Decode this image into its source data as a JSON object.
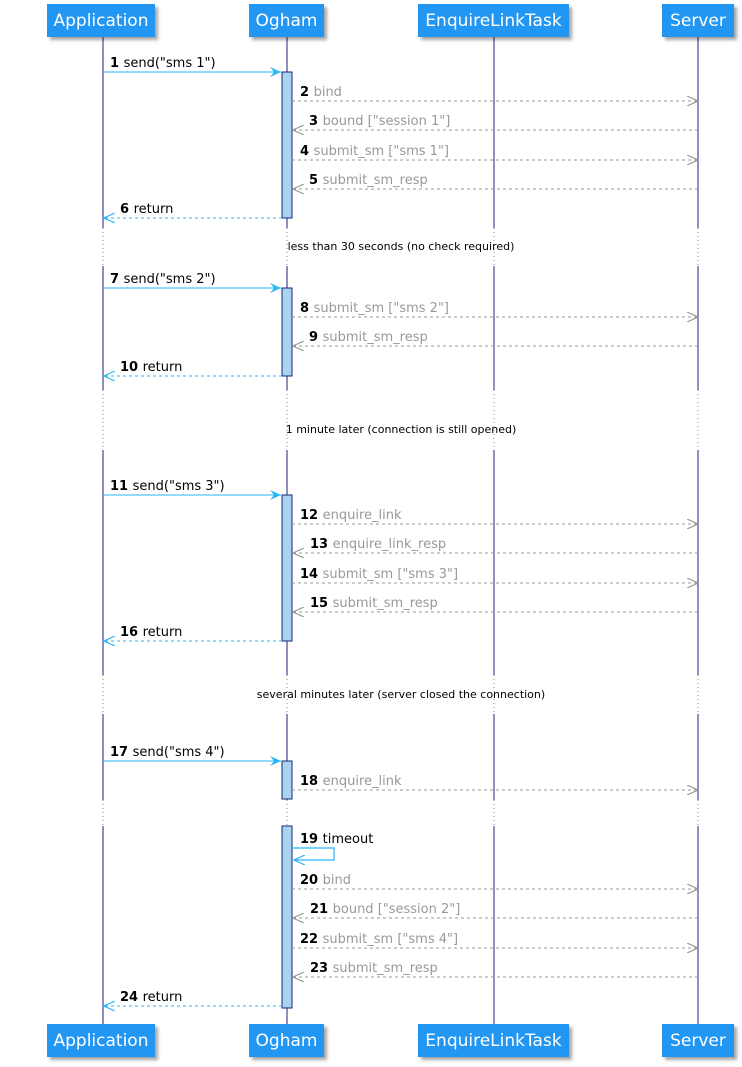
{
  "colors": {
    "actor_fill": "#2196f3",
    "lifeline": "#1a237e",
    "activation": "#a8d4ee",
    "sync_arrow": "#29b6f6",
    "async_arrow": "#999999"
  },
  "participants": [
    {
      "id": "app",
      "name": "Application"
    },
    {
      "id": "ogham",
      "name": "Ogham"
    },
    {
      "id": "task",
      "name": "EnquireLinkTask"
    },
    {
      "id": "server",
      "name": "Server"
    }
  ],
  "dividers": [
    {
      "text": "less than 30 seconds (no check required)"
    },
    {
      "text": "1 minute later (connection is still opened)"
    },
    {
      "text": "several minutes later (server closed the connection)"
    }
  ],
  "messages": [
    {
      "num": "1",
      "text": "send(\"sms 1\")",
      "from": "app",
      "to": "ogham",
      "style": "sync"
    },
    {
      "num": "2",
      "text": "bind",
      "from": "ogham",
      "to": "server",
      "style": "async"
    },
    {
      "num": "3",
      "text": "bound [\"session 1\"]",
      "from": "server",
      "to": "ogham",
      "style": "async"
    },
    {
      "num": "4",
      "text": "submit_sm [\"sms 1\"]",
      "from": "ogham",
      "to": "server",
      "style": "async"
    },
    {
      "num": "5",
      "text": "submit_sm_resp",
      "from": "server",
      "to": "ogham",
      "style": "async"
    },
    {
      "num": "6",
      "text": "return",
      "from": "ogham",
      "to": "app",
      "style": "return"
    },
    {
      "num": "7",
      "text": "send(\"sms 2\")",
      "from": "app",
      "to": "ogham",
      "style": "sync"
    },
    {
      "num": "8",
      "text": "submit_sm [\"sms 2\"]",
      "from": "ogham",
      "to": "server",
      "style": "async"
    },
    {
      "num": "9",
      "text": "submit_sm_resp",
      "from": "server",
      "to": "ogham",
      "style": "async"
    },
    {
      "num": "10",
      "text": "return",
      "from": "ogham",
      "to": "app",
      "style": "return"
    },
    {
      "num": "11",
      "text": "send(\"sms 3\")",
      "from": "app",
      "to": "ogham",
      "style": "sync"
    },
    {
      "num": "12",
      "text": "enquire_link",
      "from": "ogham",
      "to": "server",
      "style": "async"
    },
    {
      "num": "13",
      "text": "enquire_link_resp",
      "from": "server",
      "to": "ogham",
      "style": "async"
    },
    {
      "num": "14",
      "text": "submit_sm [\"sms 3\"]",
      "from": "ogham",
      "to": "server",
      "style": "async"
    },
    {
      "num": "15",
      "text": "submit_sm_resp",
      "from": "server",
      "to": "ogham",
      "style": "async"
    },
    {
      "num": "16",
      "text": "return",
      "from": "ogham",
      "to": "app",
      "style": "return"
    },
    {
      "num": "17",
      "text": "send(\"sms 4\")",
      "from": "app",
      "to": "ogham",
      "style": "sync"
    },
    {
      "num": "18",
      "text": "enquire_link",
      "from": "ogham",
      "to": "server",
      "style": "async"
    },
    {
      "num": "19",
      "text": "timeout",
      "from": "ogham",
      "to": "ogham",
      "style": "self"
    },
    {
      "num": "20",
      "text": "bind",
      "from": "ogham",
      "to": "server",
      "style": "async"
    },
    {
      "num": "21",
      "text": "bound [\"session 2\"]",
      "from": "server",
      "to": "ogham",
      "style": "async"
    },
    {
      "num": "22",
      "text": "submit_sm [\"sms 4\"]",
      "from": "ogham",
      "to": "server",
      "style": "async"
    },
    {
      "num": "23",
      "text": "submit_sm_resp",
      "from": "server",
      "to": "ogham",
      "style": "async"
    },
    {
      "num": "24",
      "text": "return",
      "from": "ogham",
      "to": "app",
      "style": "return"
    }
  ]
}
